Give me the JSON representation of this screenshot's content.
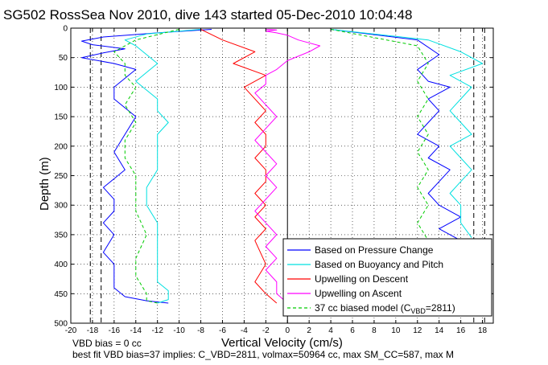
{
  "chart_data": {
    "type": "line",
    "title": "SG502 RossSea Nov 2010, dive 143 started 05-Dec-2010 10:04:48",
    "xlabel": "Vertical Velocity (cm/s)",
    "ylabel": "Depth (m)",
    "xlim": [
      -20,
      19
    ],
    "ylim": [
      0,
      500
    ],
    "y_reversed": true,
    "grid": true,
    "x_ticks": [
      -20,
      -18,
      -16,
      -14,
      -12,
      -10,
      -8,
      -6,
      -4,
      -2,
      0,
      2,
      4,
      6,
      8,
      10,
      12,
      14,
      16,
      18
    ],
    "y_ticks": [
      0,
      50,
      100,
      150,
      200,
      250,
      300,
      350,
      400,
      450,
      500
    ],
    "reference_lines": {
      "zero_line": 0,
      "dashed_vertical": [
        -17.2,
        -18.2,
        17.2,
        18.2
      ]
    },
    "legend_position": "bottom-right",
    "series": [
      {
        "name": "Based on Pressure Change",
        "color": "#0000ff",
        "segments": [
          {
            "x": [
              -7,
              -12,
              -17,
              -19,
              -18,
              -15,
              -17,
              -19,
              -16,
              -14,
              -15,
              -16,
              -16,
              -14,
              -15,
              -16,
              -15,
              -17,
              -16,
              -16,
              -17,
              -16,
              -17,
              -16,
              -16,
              -16,
              -15,
              -13,
              -11
            ],
            "y": [
              2,
              8,
              15,
              22,
              28,
              35,
              42,
              50,
              60,
              70,
              85,
              100,
              120,
              150,
              180,
              210,
              240,
              270,
              290,
              310,
              330,
              350,
              380,
              400,
              420,
              440,
              455,
              462,
              466
            ]
          },
          {
            "x": [
              4,
              12,
              14,
              12,
              13,
              15,
              13,
              14,
              13,
              12,
              14,
              13,
              15,
              14,
              13,
              14,
              16,
              14,
              15,
              16,
              15
            ],
            "y": [
              2,
              20,
              45,
              70,
              90,
              100,
              120,
              140,
              160,
              180,
              200,
              220,
              240,
              260,
              280,
              300,
              320,
              340,
              350,
              360,
              365
            ]
          }
        ]
      },
      {
        "name": "Based on Buoyancy and Pitch",
        "color": "#00e0e0",
        "segments": [
          {
            "x": [
              -8,
              -13,
              -15,
              -14,
              -13,
              -12,
              -13,
              -14,
              -13,
              -12,
              -12,
              -11,
              -12,
              -12,
              -12,
              -13,
              -13,
              -12,
              -12,
              -12,
              -12,
              -11,
              -11,
              -12
            ],
            "y": [
              2,
              10,
              20,
              30,
              45,
              60,
              75,
              90,
              105,
              120,
              140,
              160,
              180,
              210,
              240,
              270,
              300,
              330,
              360,
              400,
              430,
              445,
              460,
              466
            ]
          },
          {
            "x": [
              4,
              13,
              16,
              18,
              15,
              17,
              16,
              15,
              16,
              17,
              15,
              16,
              17,
              16,
              15,
              16,
              16,
              17
            ],
            "y": [
              2,
              20,
              40,
              60,
              80,
              100,
              120,
              140,
              160,
              180,
              200,
              220,
              240,
              260,
              280,
              300,
              330,
              355
            ]
          }
        ]
      },
      {
        "name": "Upwelling on Descent",
        "color": "#ff0000",
        "segments": [
          {
            "x": [
              -8,
              -6,
              -3,
              -5,
              -2,
              -4,
              -3,
              -2,
              -3,
              -2,
              -2,
              -3,
              -2,
              -2,
              -3,
              -2,
              -3,
              -2,
              -3,
              -2,
              -3,
              -2,
              -1
            ],
            "y": [
              2,
              20,
              40,
              60,
              80,
              100,
              120,
              140,
              160,
              180,
              200,
              220,
              240,
              260,
              280,
              300,
              320,
              340,
              360,
              400,
              430,
              450,
              466
            ]
          }
        ]
      },
      {
        "name": "Upwelling on Ascent",
        "color": "#ff00ff",
        "segments": [
          {
            "x": [
              0,
              -1,
              -1,
              -2,
              -1,
              -2,
              -1,
              -2,
              -3,
              -2,
              -1,
              -2,
              -1,
              -2,
              -3,
              -2,
              -1,
              -2,
              -3,
              -2,
              -2,
              -1,
              0,
              2,
              3,
              1,
              0,
              -1,
              -2,
              -1,
              -2
            ],
            "y": [
              466,
              450,
              430,
              410,
              390,
              370,
              350,
              330,
              310,
              290,
              270,
              250,
              230,
              210,
              190,
              170,
              150,
              130,
              110,
              95,
              80,
              70,
              55,
              40,
              30,
              20,
              12,
              8,
              5,
              3,
              2
            ]
          }
        ]
      },
      {
        "name": "37 cc biased model (C_VBD=2811)",
        "legend_label": "37 cc biased model (C",
        "legend_subscript": "VBD",
        "legend_suffix": "=2811)",
        "color": "#00cc00",
        "dashed": true,
        "segments": [
          {
            "x": [
              -10,
              -14,
              -16,
              -15,
              -15,
              -14,
              -15,
              -14,
              -15,
              -15,
              -14,
              -14,
              -14,
              -13,
              -14,
              -14,
              -13,
              -13,
              -12
            ],
            "y": [
              2,
              20,
              40,
              60,
              80,
              100,
              130,
              160,
              190,
              220,
              250,
              280,
              310,
              350,
              390,
              420,
              450,
              462,
              466
            ]
          },
          {
            "x": [
              4,
              12,
              13,
              12,
              13,
              12,
              13,
              12,
              13,
              12,
              13,
              12,
              13,
              13
            ],
            "y": [
              2,
              30,
              60,
              90,
              120,
              150,
              180,
              210,
              240,
              270,
              300,
              330,
              360,
              380
            ]
          }
        ]
      }
    ]
  },
  "footer": {
    "line1": "VBD bias = 0 cc",
    "line2": "best fit VBD bias=37 implies: C_VBD=2811, volmax=50964 cc, max SM_CC=587, max M"
  }
}
